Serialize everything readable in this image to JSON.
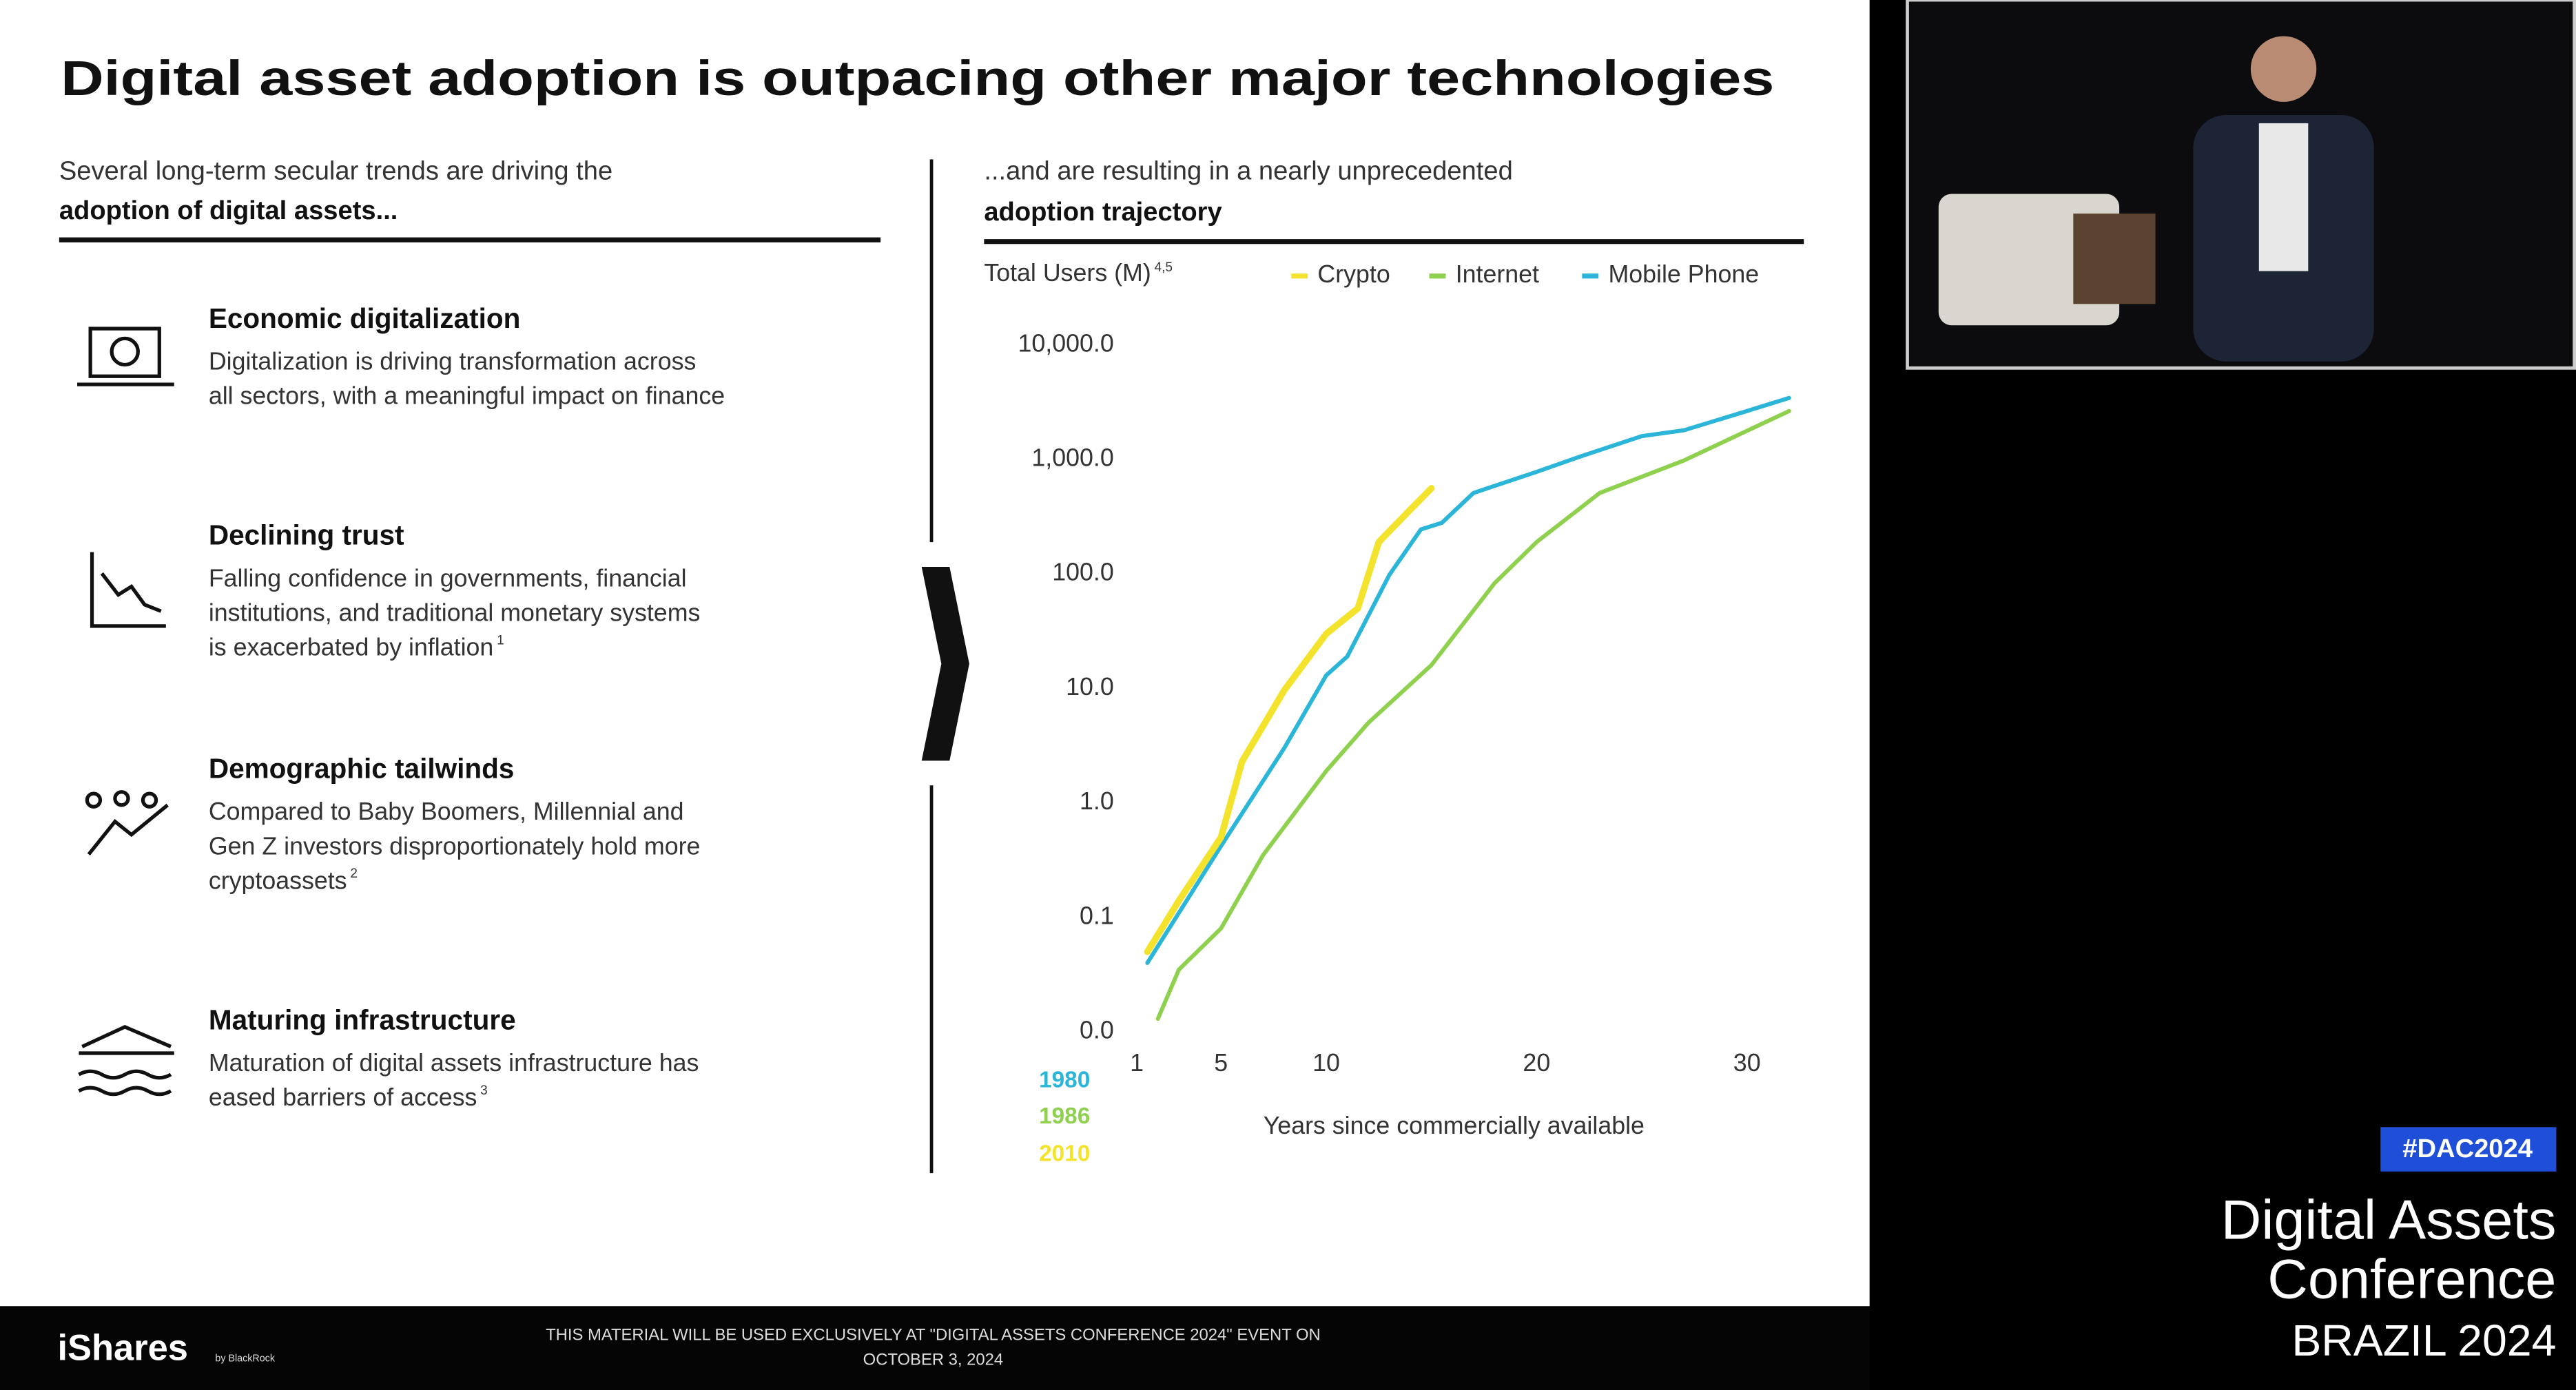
{
  "slide": {
    "title": "Digital asset adoption is outpacing other major technologies",
    "left_heading": [
      "Several long-term secular trends are driving the",
      "adoption of digital assets..."
    ],
    "items": [
      {
        "title": "Economic digitalization",
        "lines": [
          "Digitalization is driving transformation across",
          "all sectors, with a meaningful impact on finance"
        ]
      },
      {
        "title": "Declining trust",
        "lines": [
          "Falling confidence in governments, financial",
          "institutions, and traditional monetary systems",
          "is exacerbated by inflation"
        ],
        "footnote": "1"
      },
      {
        "title": "Demographic tailwinds",
        "lines": [
          "Compared to Baby Boomers, Millennial and",
          "Gen Z investors disproportionately hold more",
          "cryptoassets"
        ],
        "footnote": "2"
      },
      {
        "title": "Maturing infrastructure",
        "lines": [
          "Maturation of digital assets infrastructure has",
          "eased barriers of access"
        ],
        "footnote": "3"
      }
    ],
    "right_heading": [
      "...and are resulting in a nearly unprecedented",
      "adoption trajectory"
    ],
    "footer": {
      "brand": "iShares",
      "brand_sub": "by BlackRock",
      "disclaimer": [
        "THIS MATERIAL WILL BE USED EXCLUSIVELY AT \"DIGITAL ASSETS CONFERENCE 2024\" EVENT ON",
        "OCTOBER 3, 2024"
      ]
    }
  },
  "event": {
    "hashtag": "#DAC2024",
    "name": [
      "Digital Assets",
      "Conference"
    ],
    "edition": "BRAZIL 2024"
  },
  "chart_data": {
    "type": "line",
    "y_label": "Total Users (M)",
    "y_label_footnote": "4,5",
    "x_label": "Years since commercially available",
    "log_y": true,
    "legend": "top",
    "xlim": [
      1,
      32
    ],
    "xticks": [
      1,
      5,
      10,
      20,
      30
    ],
    "ylim": [
      0.01,
      10000
    ],
    "yticks": [
      {
        "value": 0.01,
        "label": "0.0"
      },
      {
        "value": 0.1,
        "label": "0.1"
      },
      {
        "value": 1,
        "label": "1.0"
      },
      {
        "value": 10,
        "label": "10.0"
      },
      {
        "value": 100,
        "label": "100.0"
      },
      {
        "value": 1000,
        "label": "1,000.0"
      },
      {
        "value": 10000,
        "label": "10,000.0"
      }
    ],
    "series": [
      {
        "name": "Crypto",
        "color": "#f4e32c",
        "start_label": "2010",
        "x": [
          1.5,
          3,
          5,
          6,
          8,
          10,
          11.5,
          12.5,
          14,
          15
        ],
        "values": [
          0.05,
          0.14,
          0.5,
          2.3,
          9.6,
          30,
          50,
          190,
          365,
          560
        ]
      },
      {
        "name": "Internet",
        "color": "#8fd14f",
        "start_label": "1986",
        "x": [
          2,
          3,
          5,
          7,
          10,
          12,
          15,
          18,
          20,
          23,
          27,
          30,
          32
        ],
        "values": [
          0.013,
          0.035,
          0.08,
          0.35,
          1.9,
          5,
          16,
          83,
          190,
          510,
          980,
          1780,
          2650
        ]
      },
      {
        "name": "Mobile Phone",
        "color": "#2bb5d8",
        "start_label": "1980",
        "x": [
          1.5,
          5,
          8,
          10,
          11,
          13,
          14.5,
          15.5,
          17,
          20,
          22,
          25,
          27,
          30,
          32
        ],
        "values": [
          0.04,
          0.42,
          3,
          13,
          19,
          98,
          245,
          280,
          510,
          780,
          1050,
          1600,
          1800,
          2650,
          3450
        ]
      }
    ]
  }
}
